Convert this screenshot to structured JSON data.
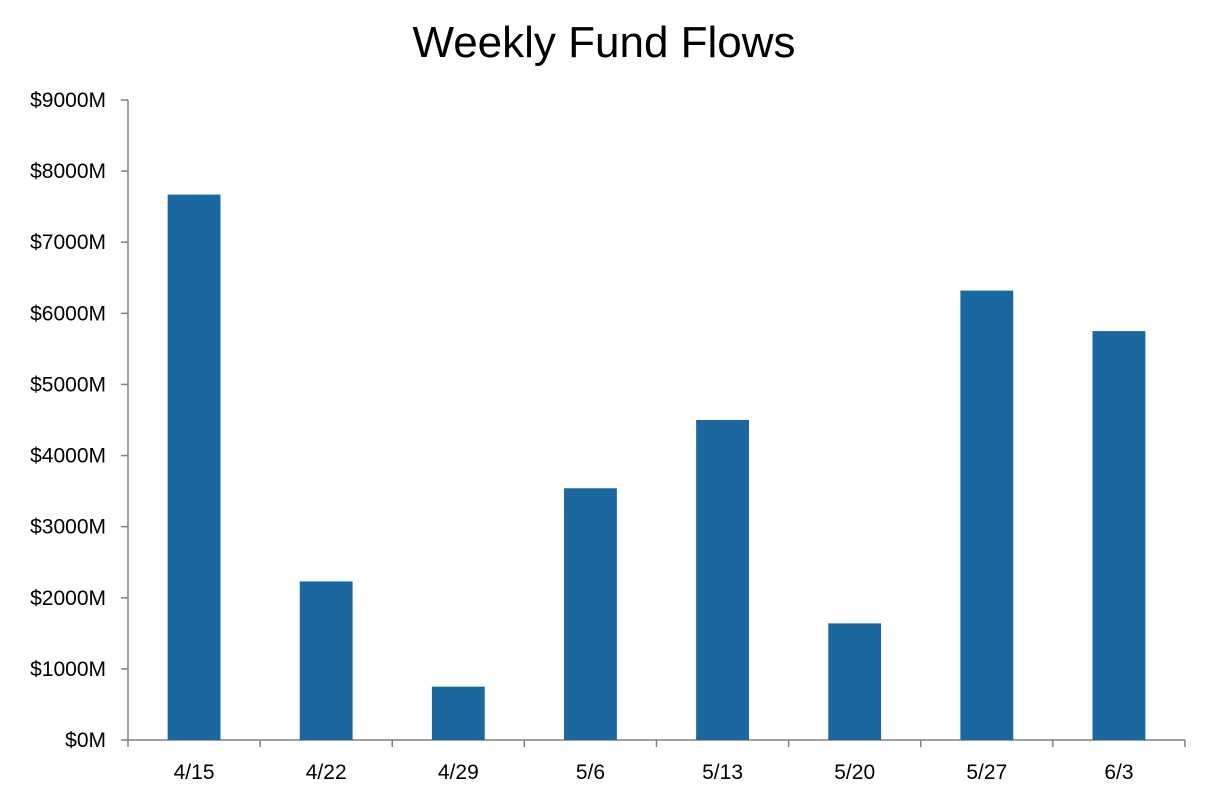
{
  "chart_data": {
    "type": "bar",
    "title": "Weekly Fund Flows",
    "xlabel": "",
    "ylabel": "",
    "categories": [
      "4/15",
      "4/22",
      "4/29",
      "5/6",
      "5/13",
      "5/20",
      "5/27",
      "6/3"
    ],
    "values": [
      7670,
      2230,
      750,
      3540,
      4500,
      1640,
      6320,
      5750
    ],
    "ylim": [
      0,
      9000
    ],
    "yticks": [
      0,
      1000,
      2000,
      3000,
      4000,
      5000,
      6000,
      7000,
      8000,
      9000
    ],
    "ytick_labels": [
      "$0M",
      "$1000M",
      "$2000M",
      "$3000M",
      "$4000M",
      "$5000M",
      "$6000M",
      "$7000M",
      "$8000M",
      "$9000M"
    ],
    "grid": false,
    "legend": "none",
    "bar_color": "#1b68a0",
    "axis_color": "#808080"
  }
}
